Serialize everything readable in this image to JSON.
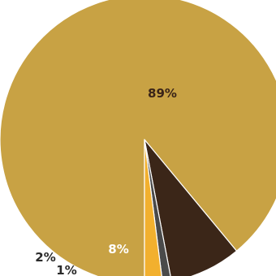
{
  "chart_data": {
    "type": "pie",
    "title": "",
    "slices": [
      {
        "label": "89%",
        "value": 89,
        "color": "#c8a244",
        "label_color": "#3a2418"
      },
      {
        "label": "8%",
        "value": 8,
        "color": "#3b2618",
        "label_color": "#ffffff"
      },
      {
        "label": "1%",
        "value": 1,
        "color": "#4a4a4a",
        "label_color": "#2a2a2a"
      },
      {
        "label": "2%",
        "value": 2,
        "color": "#f2b02e",
        "label_color": "#2a2a2a"
      }
    ]
  }
}
